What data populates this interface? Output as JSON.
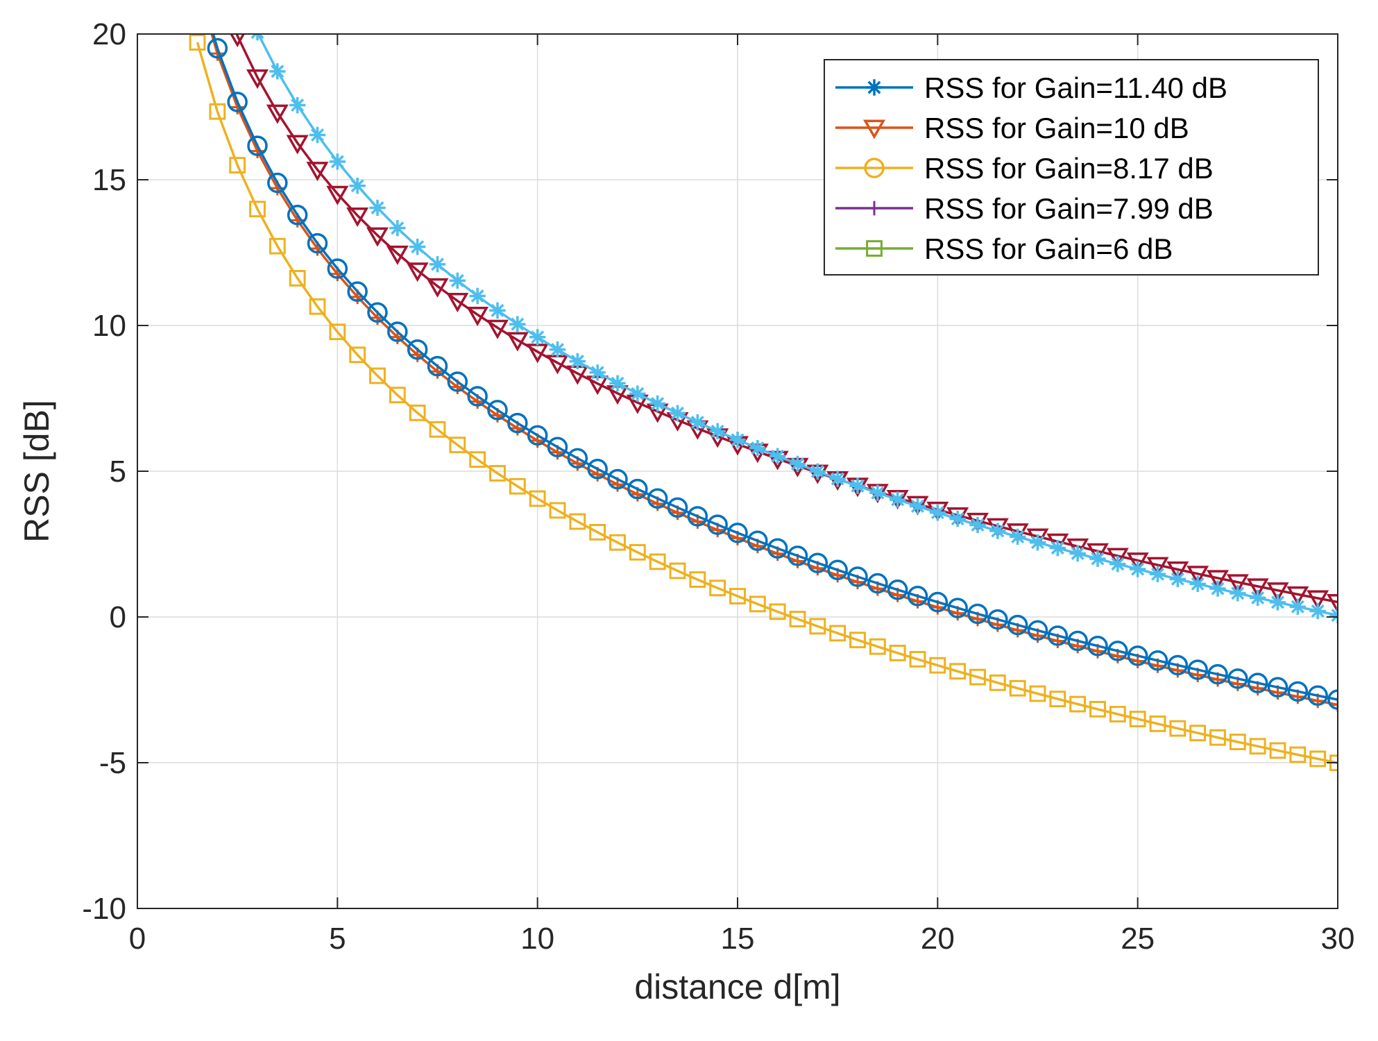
{
  "chart_data": {
    "type": "line",
    "title": "",
    "xlabel": "distance d[m]",
    "ylabel": "RSS [dB]",
    "xlim": [
      0,
      30
    ],
    "ylim": [
      -10,
      20
    ],
    "xticks": [
      0,
      5,
      10,
      15,
      20,
      25,
      30
    ],
    "yticks": [
      -10,
      -5,
      0,
      5,
      10,
      15,
      20
    ],
    "grid": true,
    "legend_position": "top-right",
    "x_start": 1.5,
    "x_end": 30,
    "x_step": 0.5,
    "series": [
      {
        "name": "RSS for Gain=11.40 dB",
        "legend_color": "#0072BD",
        "curve_color": "#4DBEEE",
        "marker": "asterisk",
        "plotted": true,
        "rss_at_1m": 29.6,
        "path_loss_exponent": 2.0
      },
      {
        "name": "RSS for Gain=10 dB",
        "legend_color": "#D95319",
        "curve_color": "#A2142F",
        "marker": "triangle-down",
        "plotted": true,
        "rss_at_1m": 27.1,
        "path_loss_exponent": 1.8
      },
      {
        "name": "RSS for Gain=8.17 dB",
        "legend_color": "#EDB120",
        "curve_color": "#0072BD",
        "marker": "circle",
        "plotted": true,
        "rss_at_1m": 25.23,
        "path_loss_exponent": 1.9
      },
      {
        "name": "RSS for Gain=7.99 dB",
        "legend_color": "#7E2F8E",
        "curve_color": "#D95319",
        "marker": "plus",
        "plotted": true,
        "rss_at_1m": 25.05,
        "path_loss_exponent": 1.9
      },
      {
        "name": "RSS for Gain=6 dB",
        "legend_color": "#77AC30",
        "curve_color": "#EDB120",
        "marker": "square",
        "plotted": true,
        "rss_at_1m": 23.06,
        "path_loss_exponent": 1.9
      }
    ]
  }
}
